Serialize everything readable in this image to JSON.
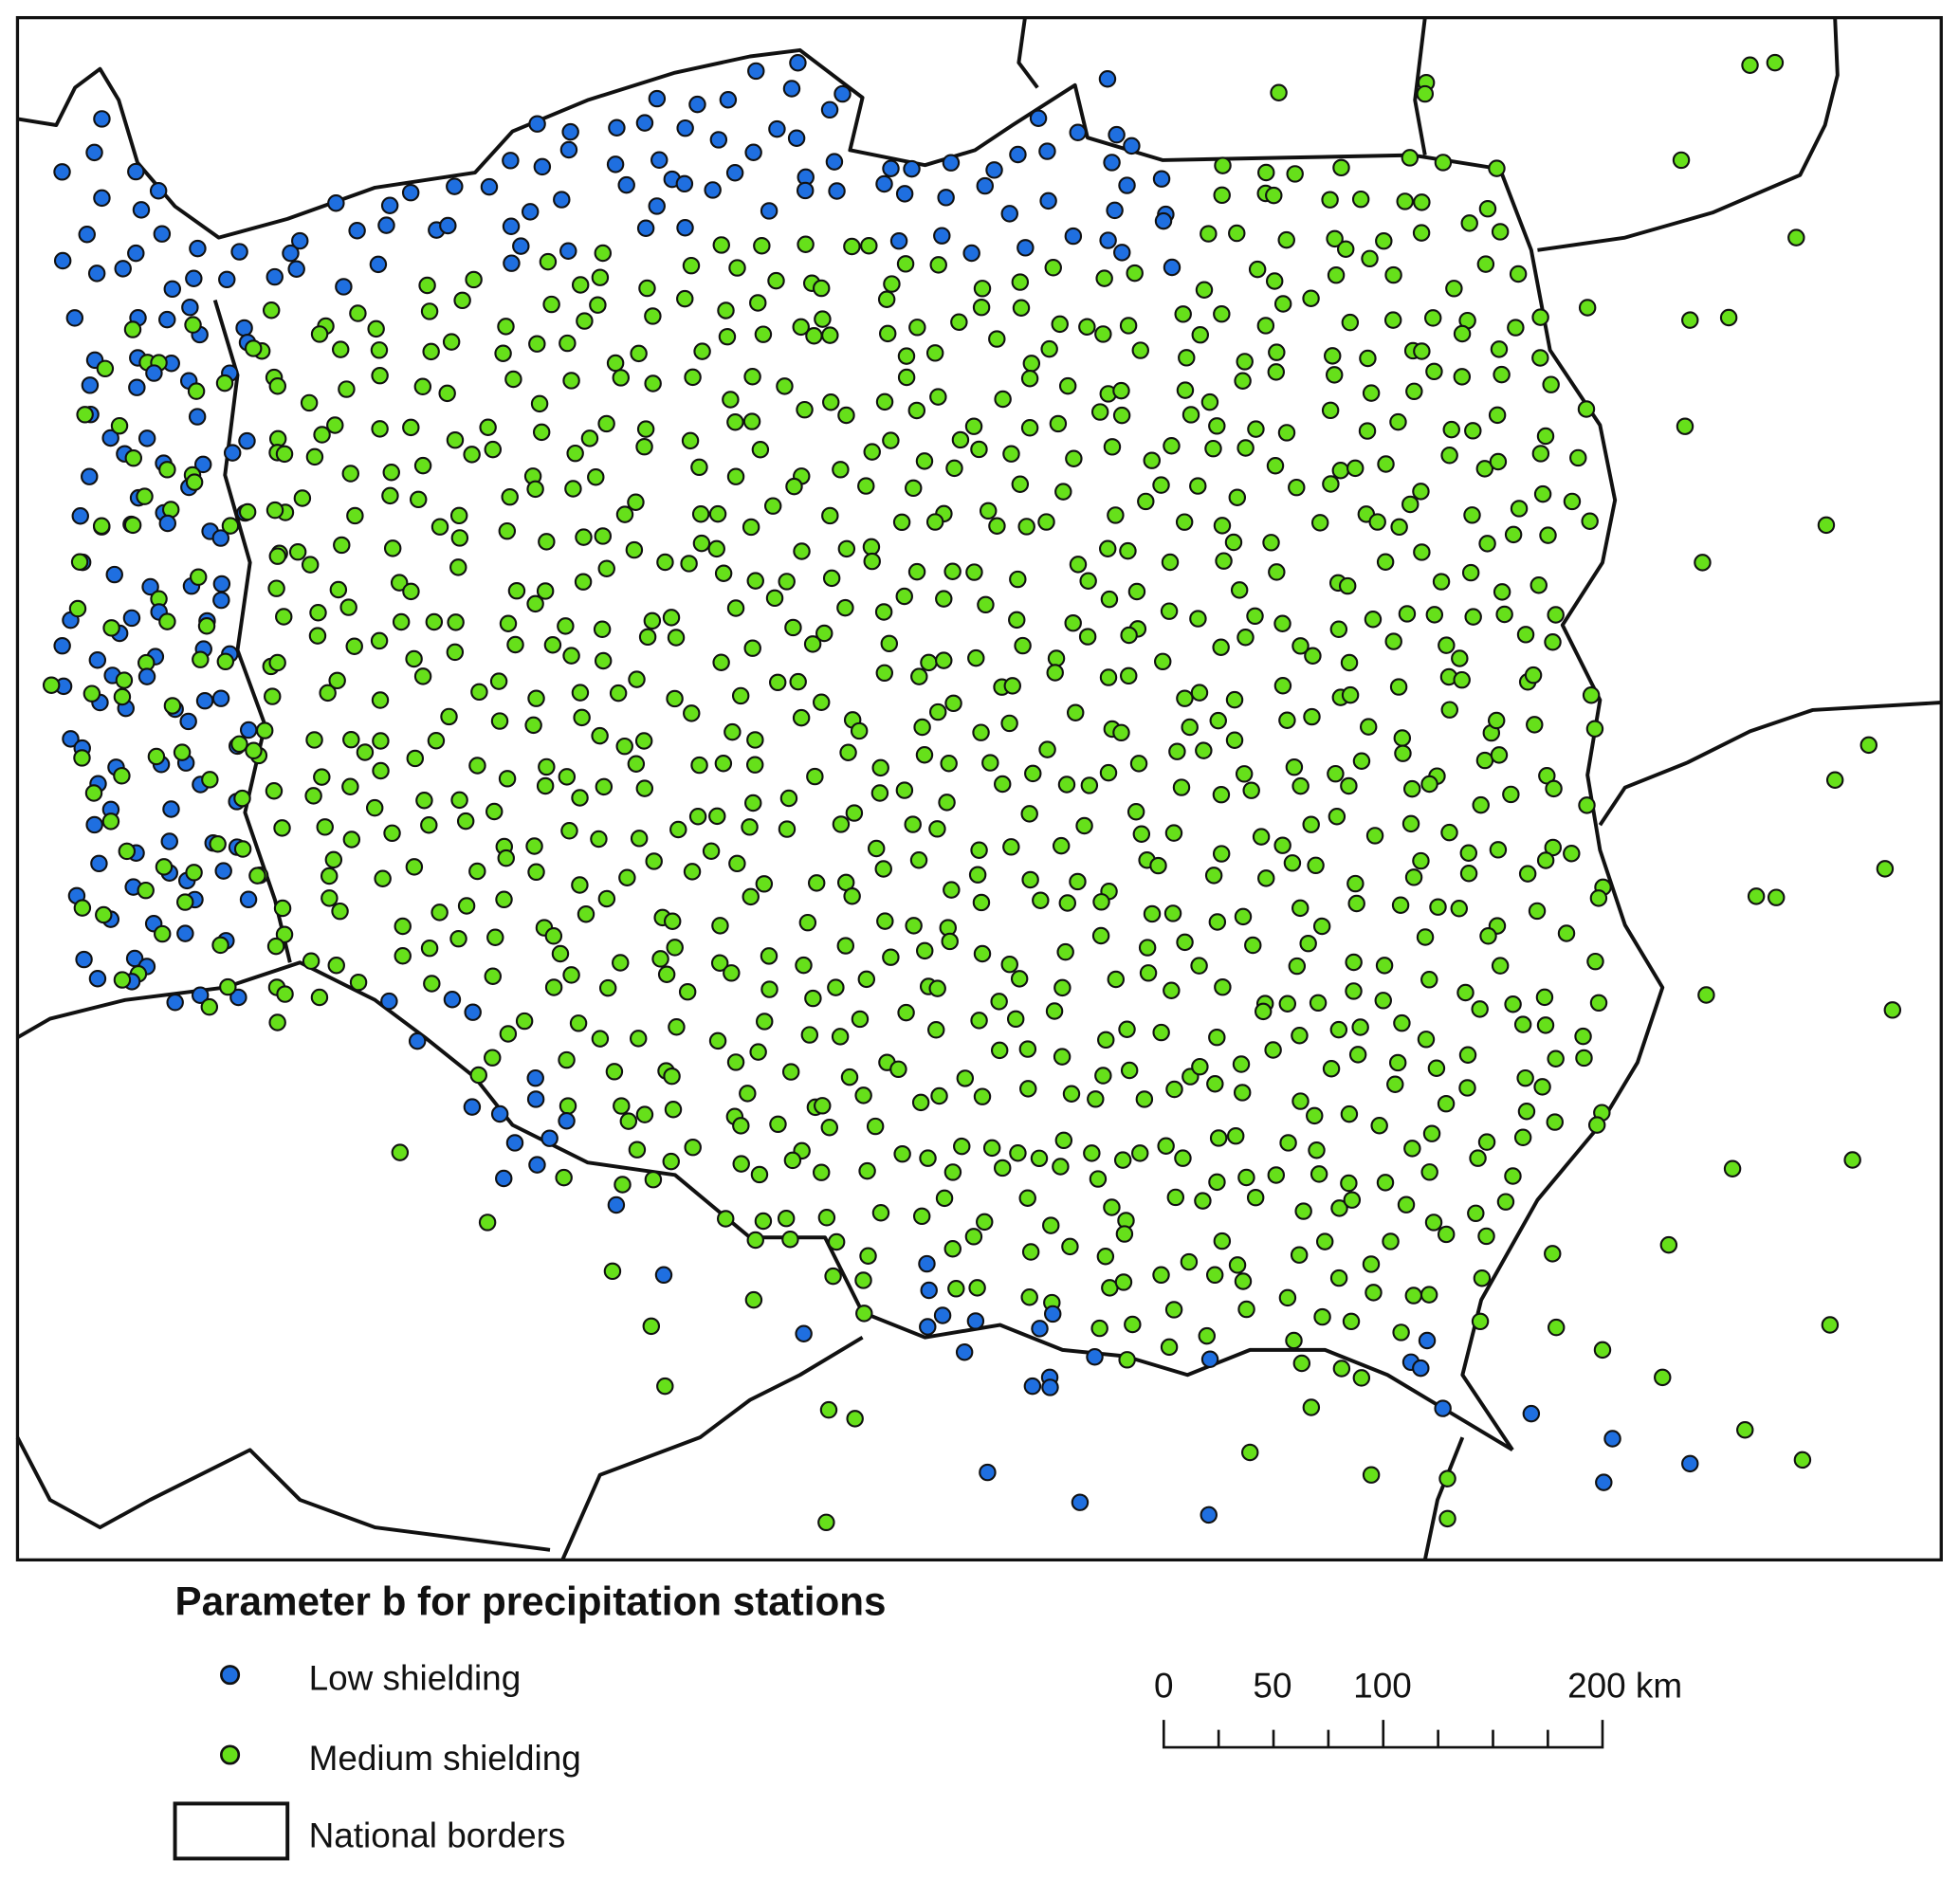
{
  "title": "Parameter b for precipitation stations",
  "legend": [
    {
      "label": "Low shielding",
      "color": "#1f6fe0",
      "symbol": "dot"
    },
    {
      "label": "Medium shielding",
      "color": "#66e01a",
      "symbol": "dot"
    },
    {
      "label": "National borders",
      "symbol": "box"
    }
  ],
  "scale_bar": {
    "labels": [
      "0",
      "50",
      "100",
      "200 km"
    ],
    "unit": "km"
  },
  "colors": {
    "low": "#1f6fe0",
    "medium": "#66e01a",
    "outline": "#111111"
  }
}
